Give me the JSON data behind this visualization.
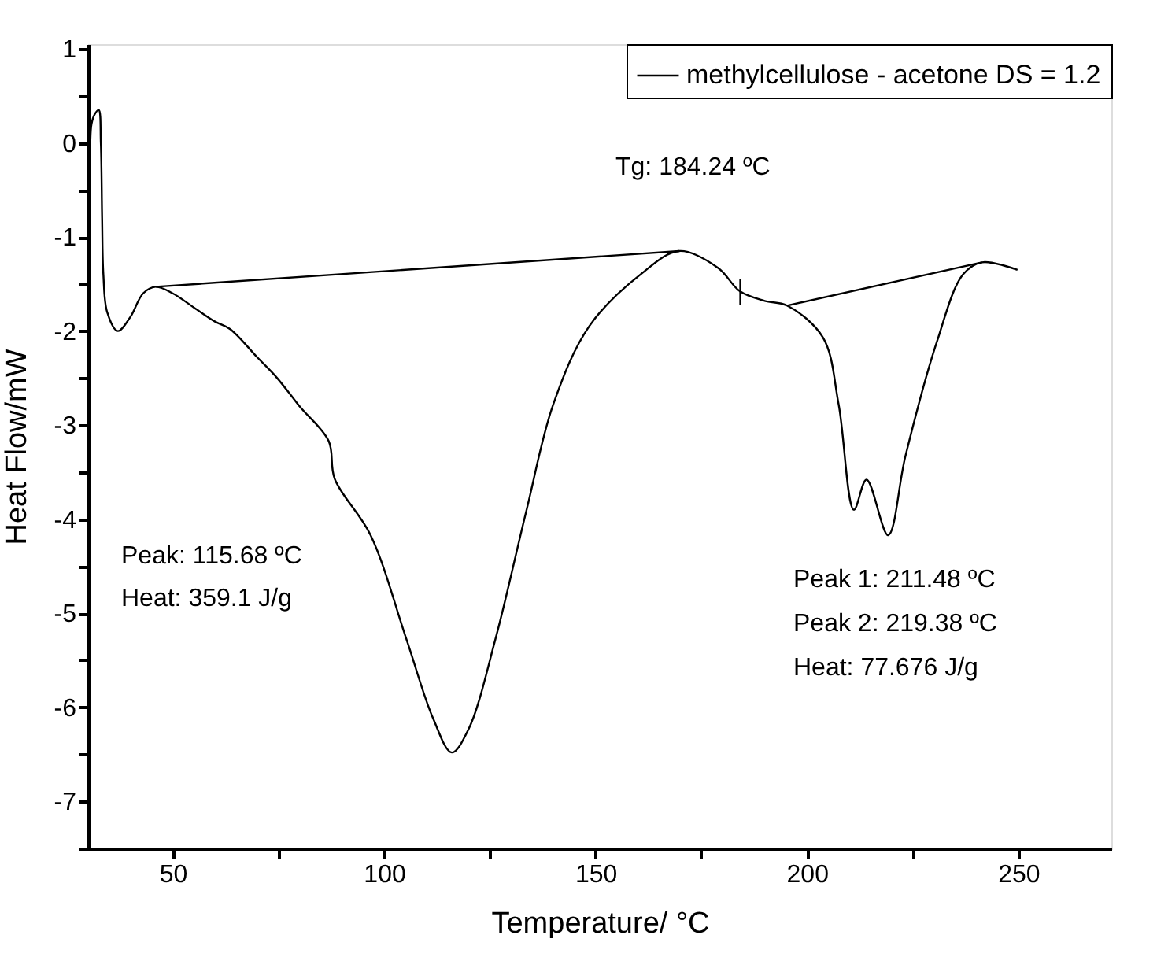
{
  "chart_data": {
    "type": "line",
    "xlabel": "Temperature/ °C",
    "ylabel": "Heat Flow/mW",
    "xlim": [
      30,
      272
    ],
    "ylim": [
      -7.5,
      1.05
    ],
    "xticks": [
      50,
      {
        "value": 75,
        "label": null
      },
      100,
      {
        "value": 125,
        "label": null
      },
      150,
      {
        "value": 175,
        "label": null
      },
      200,
      {
        "value": 225,
        "label": null
      },
      250
    ],
    "yticks": [
      {
        "value": -7.5,
        "label": null
      },
      -7,
      {
        "value": -6.5,
        "label": null
      },
      -6,
      {
        "value": -5.5,
        "label": null
      },
      -5,
      {
        "value": -4.5,
        "label": null
      },
      -4,
      {
        "value": -3.5,
        "label": null
      },
      -3,
      {
        "value": -2.5,
        "label": null
      },
      -2,
      {
        "value": -1.5,
        "label": null
      },
      -1,
      {
        "value": -0.5,
        "label": null
      },
      0,
      {
        "value": 0.5,
        "label": null
      },
      1
    ],
    "legend": "top right",
    "grid": false,
    "series": [
      {
        "name": "methylcellulose - acetone DS = 1.2",
        "color": "#000000",
        "x": [
          30.3,
          30.4,
          30.5,
          30.8,
          31.5,
          32.5,
          33.0,
          33.3,
          33.6,
          34.5,
          37,
          40,
          43,
          46,
          50,
          55,
          60,
          63.6,
          70,
          74.7,
          80,
          86.9,
          88.3,
          96.8,
          105.3,
          111.6,
          116,
          120,
          126.3,
          133.7,
          140,
          148.5,
          160.6,
          169.8,
          179,
          184.2,
          190,
          195.3,
          203.8,
          207.5,
          211.1,
          214.1,
          219.2,
          223.3,
          230.7,
          236.9,
          241.4,
          249.8
        ],
        "values": [
          -1.7,
          -1.0,
          0.0,
          0.2,
          0.3,
          0.35,
          0.0,
          -0.8,
          -1.4,
          -1.8,
          -2.0,
          -1.85,
          -1.6,
          -1.53,
          -1.6,
          -1.75,
          -1.9,
          -1.98,
          -2.28,
          -2.5,
          -2.8,
          -3.17,
          -3.57,
          -4.17,
          -5.28,
          -6.12,
          -6.48,
          -6.23,
          -5.28,
          -3.9,
          -2.78,
          -1.95,
          -1.4,
          -1.15,
          -1.33,
          -1.58,
          -1.68,
          -1.73,
          -2.07,
          -2.78,
          -3.9,
          -3.58,
          -4.17,
          -3.33,
          -2.12,
          -1.4,
          -1.27,
          -1.35
        ]
      },
      {
        "color": "#000000",
        "x": [
          46,
          169.8
        ],
        "values": [
          -1.53,
          -1.15
        ]
      },
      {
        "color": "#000000",
        "x": [
          195.3,
          241.4
        ],
        "values": [
          -1.73,
          -1.27
        ]
      },
      {
        "color": "#000000",
        "x": [
          184.24,
          184.24
        ],
        "values": [
          -1.45,
          -1.72
        ]
      }
    ],
    "annotations": [
      "Peak: 115.68 ºC",
      "Heat: 359.1 J/g",
      "Tg: 184.24 ºC",
      "Peak 1: 211.48 ºC",
      "Peak 2: 219.38 ºC",
      "Heat: 77.676 J/g"
    ]
  }
}
